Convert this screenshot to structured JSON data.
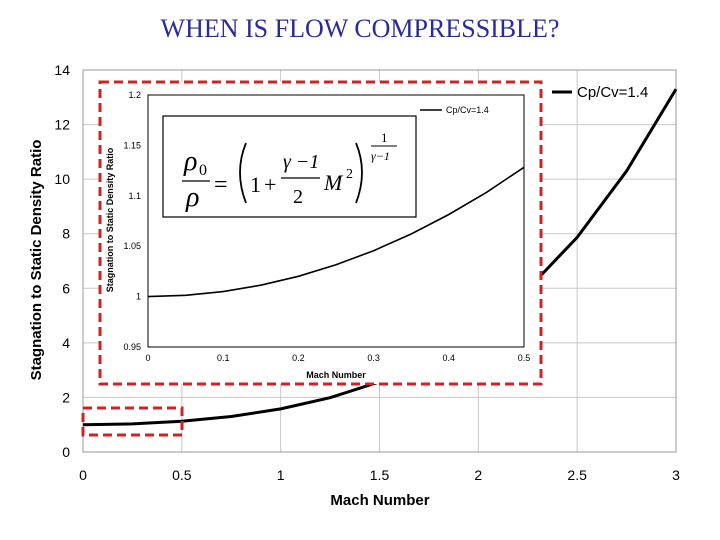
{
  "title": "WHEN IS FLOW COMPRESSIBLE?",
  "colors": {
    "title": "#2a2a9a",
    "line": "#000000",
    "highlight": "#d42020",
    "grid": "#c8c8c8"
  },
  "equation": {
    "lhs_num": "ρ",
    "lhs_num_sub": "0",
    "lhs_den": "ρ",
    "eq": "=",
    "one": "1",
    "plus": "+",
    "gamma_num": "γ −1",
    "two": "2",
    "mach": "M",
    "mach_exp": "2",
    "exp_num": "1",
    "exp_den": "γ−1"
  },
  "chart_data": [
    {
      "type": "line",
      "xlabel": "Mach Number",
      "ylabel": "Stagnation to Static Density Ratio",
      "xlim": [
        0,
        3
      ],
      "ylim": [
        0,
        14
      ],
      "xticks": [
        "0",
        "0.5",
        "1",
        "1.5",
        "2",
        "2.5",
        "3"
      ],
      "yticks": [
        "0",
        "2",
        "4",
        "6",
        "8",
        "10",
        "12",
        "14"
      ],
      "grid": true,
      "legend": "top-right",
      "series": [
        {
          "name": "Cp/Cv=1.4",
          "x": [
            0,
            0.25,
            0.5,
            0.75,
            1.0,
            1.25,
            1.5,
            1.75,
            2.0,
            2.25,
            2.5,
            2.75,
            3.0
          ],
          "y": [
            1.0,
            1.03,
            1.13,
            1.3,
            1.58,
            1.99,
            2.57,
            3.39,
            4.5,
            5.97,
            7.87,
            10.3,
            13.3
          ]
        }
      ]
    },
    {
      "type": "line",
      "xlabel": "Mach Number",
      "ylabel": "Stagnation to Static Density Ratio",
      "xlim": [
        0,
        0.5
      ],
      "ylim": [
        0.95,
        1.2
      ],
      "xticks": [
        "0",
        "0.1",
        "0.2",
        "0.3",
        "0.4",
        "0.5"
      ],
      "yticks": [
        "0.95",
        "1",
        "1.05",
        "1.1",
        "1.15",
        "1.2"
      ],
      "grid": false,
      "legend": "top-right",
      "series": [
        {
          "name": "Cp/Cv=1.4",
          "x": [
            0,
            0.05,
            0.1,
            0.15,
            0.2,
            0.25,
            0.3,
            0.35,
            0.4,
            0.45,
            0.5
          ],
          "y": [
            1.0,
            1.0013,
            1.005,
            1.0113,
            1.0201,
            1.0315,
            1.0455,
            1.0621,
            1.0814,
            1.1034,
            1.1283
          ]
        }
      ]
    }
  ]
}
